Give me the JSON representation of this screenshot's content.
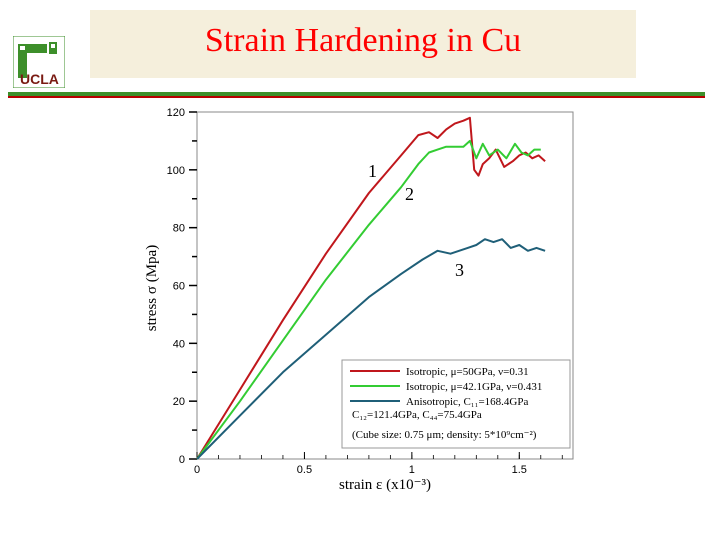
{
  "slide": {
    "title": "Strain Hardening in Cu",
    "logo_text": "UCLA",
    "colors": {
      "title": "#ff0000",
      "title_box": "#f5efdc",
      "rule_green": "#3d8f2a",
      "rule_red": "#b80000"
    }
  },
  "chart_data": {
    "type": "line",
    "xlabel": "strain ε (x10⁻³)",
    "ylabel": "stress σ (Mpa)",
    "xlim": [
      0,
      1.75
    ],
    "ylim": [
      0,
      120
    ],
    "x_ticks": [
      "0",
      "0.5",
      "1",
      "1.5"
    ],
    "y_ticks": [
      "0",
      "20",
      "40",
      "60",
      "80",
      "100",
      "120"
    ],
    "grid": false,
    "legend_position": "bottom-right",
    "annotations": [
      "1",
      "2",
      "3"
    ],
    "legend_note": "(Cube size: 0.75 μm; density: 5*10⁹cm⁻²)",
    "series": [
      {
        "label": "1",
        "legend": "Isotropic, μ=50GPa, ν=0.31",
        "color": "#c0171c",
        "x": [
          0,
          0.2,
          0.4,
          0.6,
          0.8,
          0.95,
          1.03,
          1.08,
          1.12,
          1.16,
          1.2,
          1.24,
          1.27,
          1.29,
          1.31,
          1.33,
          1.36,
          1.39,
          1.43,
          1.47,
          1.5,
          1.53,
          1.56,
          1.59,
          1.62
        ],
        "y": [
          0,
          24,
          48,
          71,
          92,
          105,
          112,
          113,
          111,
          114,
          116,
          117,
          118,
          100,
          98,
          102,
          104,
          107,
          101,
          103,
          105,
          106,
          104,
          105,
          103
        ]
      },
      {
        "label": "2",
        "legend": "Isotropic, μ=42.1GPa, ν=0.431",
        "color": "#33cc33",
        "x": [
          0,
          0.2,
          0.4,
          0.6,
          0.8,
          0.95,
          1.03,
          1.08,
          1.12,
          1.16,
          1.2,
          1.24,
          1.27,
          1.3,
          1.33,
          1.36,
          1.4,
          1.44,
          1.48,
          1.51,
          1.54,
          1.57,
          1.6
        ],
        "y": [
          0,
          20,
          41,
          62,
          81,
          94,
          102,
          106,
          107,
          108,
          108,
          108,
          110,
          104,
          109,
          105,
          107,
          104,
          109,
          106,
          105,
          107,
          107
        ]
      },
      {
        "label": "3",
        "legend": "Anisotropic, C₁₁=168.4GPa C₁₂=121.4GPa, C₄₄=75.4GPa",
        "color": "#1f5f78",
        "x": [
          0,
          0.2,
          0.4,
          0.6,
          0.8,
          0.95,
          1.05,
          1.12,
          1.18,
          1.22,
          1.26,
          1.3,
          1.34,
          1.38,
          1.42,
          1.46,
          1.5,
          1.54,
          1.58,
          1.62
        ],
        "y": [
          0,
          15,
          30,
          43,
          56,
          64,
          69,
          72,
          71,
          72,
          73,
          74,
          76,
          75,
          76,
          73,
          74,
          72,
          73,
          72
        ]
      }
    ]
  }
}
